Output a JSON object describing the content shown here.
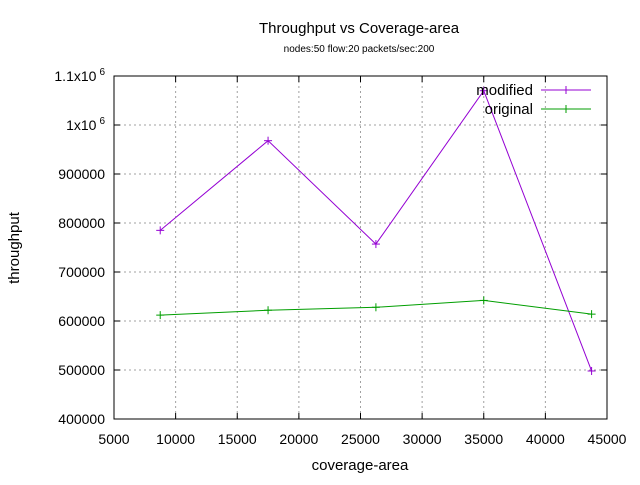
{
  "chart_data": {
    "type": "line",
    "title": "Throughput vs Coverage-area",
    "subtitle": "nodes:50  flow:20  packets/sec:200",
    "xlabel": "coverage-area",
    "ylabel": "throughput",
    "xlim": [
      5000,
      45000
    ],
    "ylim": [
      400000,
      1100000
    ],
    "grid": true,
    "legend_position": "top-right",
    "x_ticks": [
      {
        "value": 5000,
        "label": "5000"
      },
      {
        "value": 10000,
        "label": "10000"
      },
      {
        "value": 15000,
        "label": "15000"
      },
      {
        "value": 20000,
        "label": "20000"
      },
      {
        "value": 25000,
        "label": "25000"
      },
      {
        "value": 30000,
        "label": "30000"
      },
      {
        "value": 35000,
        "label": "35000"
      },
      {
        "value": 40000,
        "label": "40000"
      },
      {
        "value": 45000,
        "label": "45000"
      }
    ],
    "y_ticks": [
      {
        "value": 400000,
        "label": "400000",
        "sup": ""
      },
      {
        "value": 500000,
        "label": "500000",
        "sup": ""
      },
      {
        "value": 600000,
        "label": "600000",
        "sup": ""
      },
      {
        "value": 700000,
        "label": "700000",
        "sup": ""
      },
      {
        "value": 800000,
        "label": "800000",
        "sup": ""
      },
      {
        "value": 900000,
        "label": "900000",
        "sup": ""
      },
      {
        "value": 1000000,
        "label": "1x10",
        "sup": "6"
      },
      {
        "value": 1100000,
        "label": "1.1x10",
        "sup": "6"
      }
    ],
    "series": [
      {
        "name": "modified",
        "color": "#9400d3",
        "x": [
          8750,
          17500,
          26250,
          35000,
          43750
        ],
        "y": [
          785000,
          968000,
          757000,
          1070000,
          498000
        ]
      },
      {
        "name": "original",
        "color": "#009e00",
        "x": [
          8750,
          17500,
          26250,
          35000,
          43750
        ],
        "y": [
          612000,
          622000,
          628000,
          642000,
          614000
        ]
      }
    ]
  }
}
